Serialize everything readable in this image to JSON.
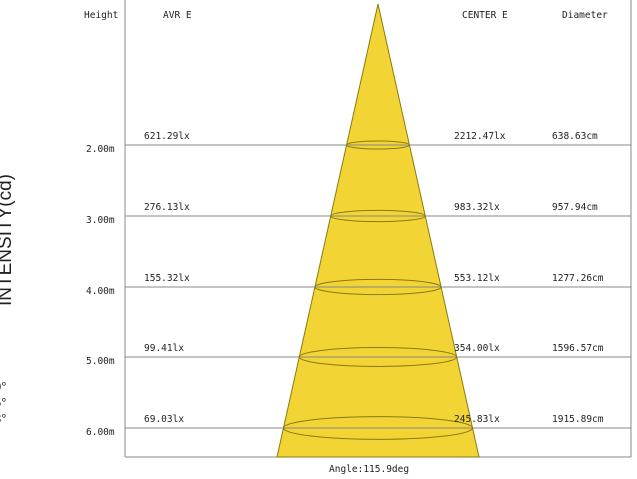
{
  "headers": {
    "height": "Height",
    "avr": "AVR E",
    "center": "CENTER E",
    "diameter": "Diameter"
  },
  "y_axis_label": "INTENSITY(cd)",
  "left_fragments": [
    "°",
    "0°",
    "5°",
    "8°"
  ],
  "rows": [
    {
      "height": "2.00m",
      "avr": "621.29lx",
      "center": "2212.47lx",
      "diameter": "638.63cm"
    },
    {
      "height": "3.00m",
      "avr": "276.13lx",
      "center": "983.32lx",
      "diameter": "957.94cm"
    },
    {
      "height": "4.00m",
      "avr": "155.32lx",
      "center": "553.12lx",
      "diameter": "1277.26cm"
    },
    {
      "height": "5.00m",
      "avr": "99.41lx",
      "center": "354.00lx",
      "diameter": "1596.57cm"
    },
    {
      "height": "6.00m",
      "avr": "69.03lx",
      "center": "245.83lx",
      "diameter": "1915.89cm"
    }
  ],
  "angle_label": "Angle:115.9deg",
  "colors": {
    "cone_fill": "#f2d535",
    "cone_stroke": "#8a7a10",
    "lines": "#888888"
  }
}
